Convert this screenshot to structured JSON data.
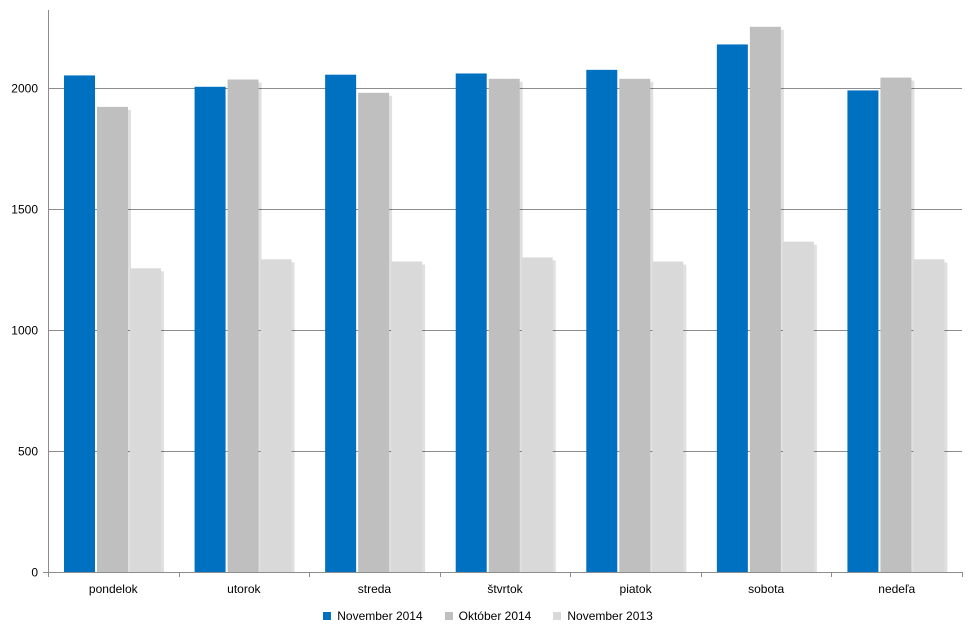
{
  "chart_data": {
    "type": "bar",
    "categories": [
      "pondelok",
      "utorok",
      "streda",
      "štvrtok",
      "piatok",
      "sobota",
      "nedeľa"
    ],
    "series": [
      {
        "name": "November 2014",
        "color": "#0070C0",
        "values": [
          2052,
          2005,
          2055,
          2060,
          2075,
          2180,
          1990
        ]
      },
      {
        "name": "Október 2014",
        "color": "#BFBFBF",
        "values": [
          1922,
          2035,
          1980,
          2038,
          2038,
          2253,
          2043
        ]
      },
      {
        "name": "November 2013",
        "color": "#D9D9D9",
        "values": [
          1255,
          1292,
          1283,
          1300,
          1283,
          1365,
          1292
        ]
      }
    ],
    "yticks": [
      "0",
      "500",
      "1000",
      "1500",
      "2000"
    ],
    "ylim": [
      0,
      2300
    ],
    "grid": true,
    "legend_position": "bottom"
  }
}
